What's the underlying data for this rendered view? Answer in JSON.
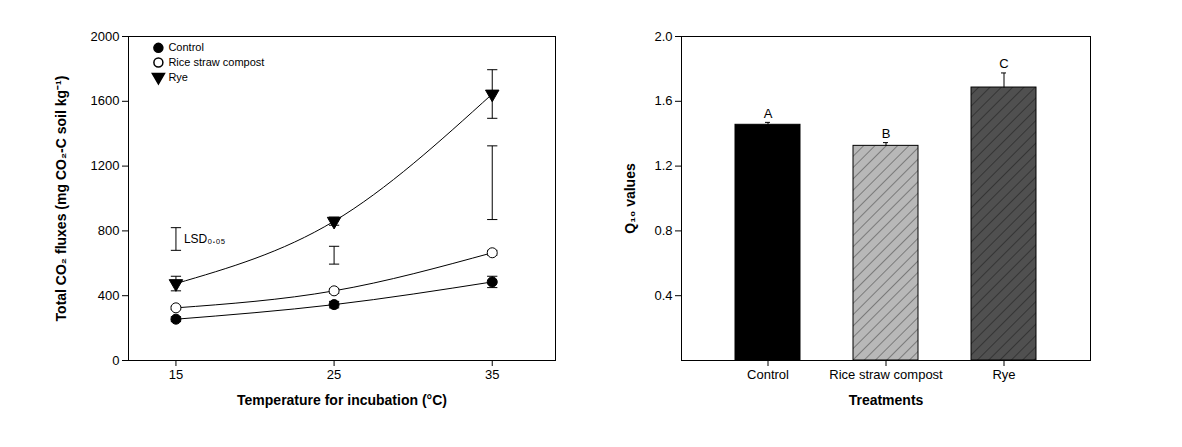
{
  "chart_data": [
    {
      "type": "scatter",
      "x_label": "Temperature for incubation (°C)",
      "y_label": "Total CO₂ fluxes (mg CO₂-C soil kg⁻¹)",
      "x": [
        15,
        25,
        35
      ],
      "xlim": [
        12,
        39
      ],
      "xticks": [
        15,
        25,
        35
      ],
      "ylim": [
        0,
        2000
      ],
      "yticks": [
        0,
        400,
        800,
        1200,
        1600,
        2000
      ],
      "legend": "upper left",
      "series": [
        {
          "name": "Control",
          "color": "#000000",
          "marker": "circle",
          "values": [
            255,
            345,
            485
          ],
          "errors": [
            15,
            20,
            35
          ]
        },
        {
          "name": "Rice straw compost",
          "color": "#000000",
          "marker": "circle_open",
          "values": [
            325,
            430,
            665
          ],
          "errors": [
            10,
            15,
            15
          ]
        },
        {
          "name": "Rye",
          "color": "#000000",
          "marker": "triangle_down",
          "values": [
            475,
            860,
            1645
          ],
          "errors": [
            45,
            25,
            150
          ]
        }
      ],
      "lsd": {
        "label": "LSD₀.₀₅",
        "x": [
          15,
          25,
          35
        ],
        "low": [
          680,
          595,
          870
        ],
        "high": [
          820,
          705,
          1325
        ]
      }
    },
    {
      "type": "bar",
      "x_label": "Treatments",
      "y_label": "Q₁₀ values",
      "categories": [
        "Control",
        "Rice straw compost",
        "Rye"
      ],
      "values": [
        1.455,
        1.325,
        1.685
      ],
      "errors": [
        0.015,
        0.02,
        0.09
      ],
      "letters": [
        "A",
        "B",
        "C"
      ],
      "colors": [
        "#000000",
        "#b8b8b8",
        "#505050"
      ],
      "ylim": [
        0,
        2
      ],
      "yticks": [
        0.4,
        0.8,
        1.2,
        1.6,
        {
          "value": 2,
          "label": "2.0"
        }
      ]
    }
  ]
}
